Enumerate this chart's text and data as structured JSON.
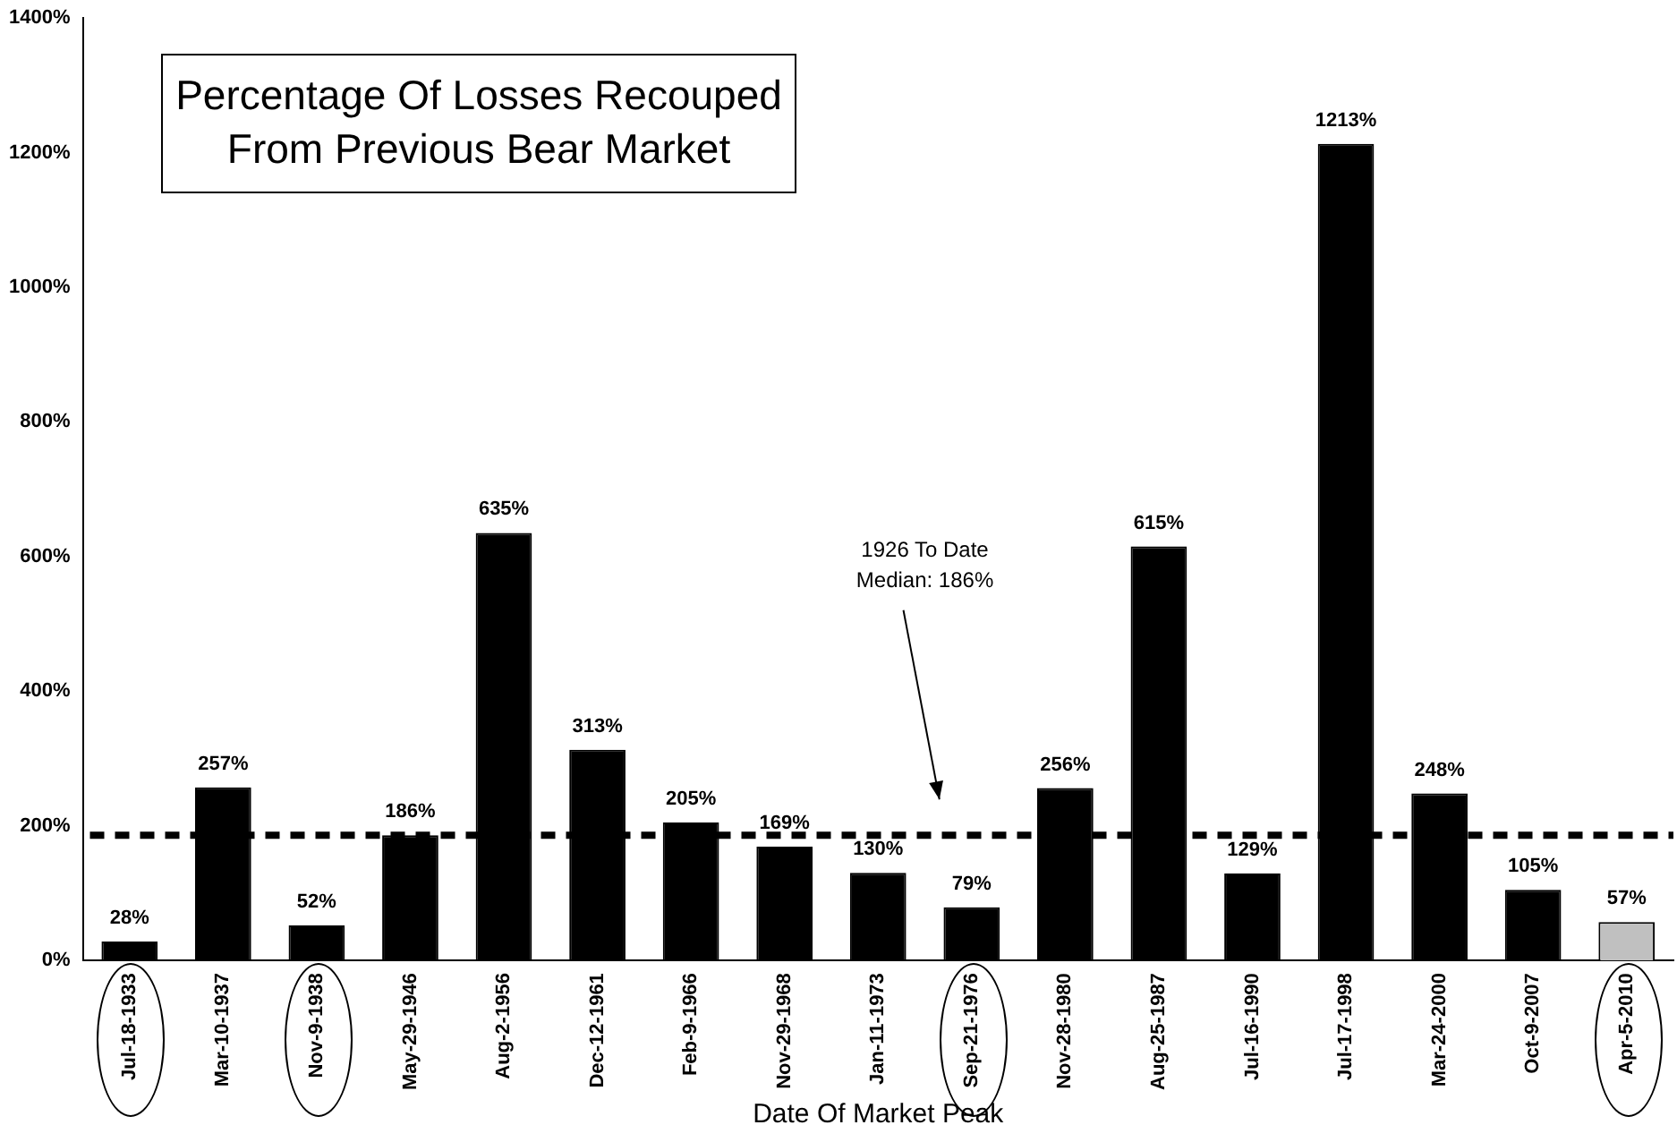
{
  "chart_data": {
    "type": "bar",
    "title": "Percentage Of Losses Recouped From Previous Bear Market",
    "xlabel": "Date Of Market Peak",
    "categories": [
      "Jul-18-1933",
      "Mar-10-1937",
      "Nov-9-1938",
      "May-29-1946",
      "Aug-2-1956",
      "Dec-12-1961",
      "Feb-9-1966",
      "Nov-29-1968",
      "Jan-11-1973",
      "Sep-21-1976",
      "Nov-28-1980",
      "Aug-25-1987",
      "Jul-16-1990",
      "Jul-17-1998",
      "Mar-24-2000",
      "Oct-9-2007",
      "Apr-5-2010"
    ],
    "values": [
      28,
      257,
      52,
      186,
      635,
      313,
      205,
      169,
      130,
      79,
      256,
      615,
      129,
      1213,
      248,
      105,
      57
    ],
    "colors": [
      "#000000",
      "#000000",
      "#000000",
      "#000000",
      "#000000",
      "#000000",
      "#000000",
      "#000000",
      "#000000",
      "#000000",
      "#000000",
      "#000000",
      "#000000",
      "#000000",
      "#000000",
      "#000000",
      "#c0c0c0"
    ],
    "value_labels": [
      "28%",
      "257%",
      "52%",
      "186%",
      "635%",
      "313%",
      "205%",
      "169%",
      "130%",
      "79%",
      "256%",
      "615%",
      "129%",
      "1213%",
      "248%",
      "105%",
      "57%"
    ],
    "ylim": [
      0,
      1400
    ],
    "yticks": [
      {
        "value": 0,
        "label": "0%"
      },
      {
        "value": 200,
        "label": "200%"
      },
      {
        "value": 400,
        "label": "400%"
      },
      {
        "value": 600,
        "label": "600%"
      },
      {
        "value": 800,
        "label": "800%"
      },
      {
        "value": 1000,
        "label": "1000%"
      },
      {
        "value": 1200,
        "label": "1200%"
      },
      {
        "value": 1400,
        "label": "1400%"
      }
    ],
    "ref_lines": [
      {
        "axis": "y",
        "value": 186,
        "label": "1926 To Date\nMedian: 186%",
        "color": "#000000",
        "line_style": "dashed"
      }
    ],
    "grid": false,
    "legend": false
  }
}
